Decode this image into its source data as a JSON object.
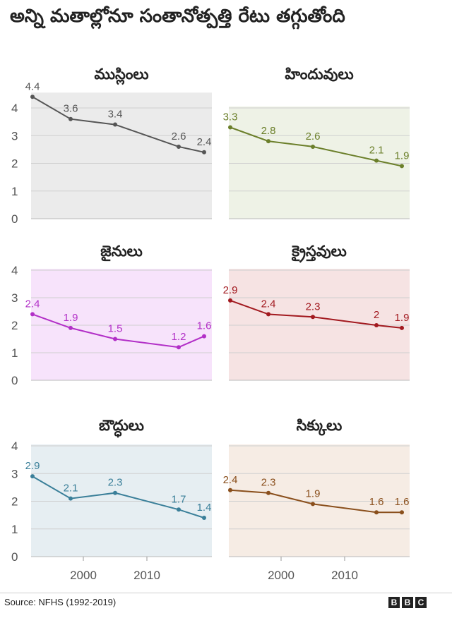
{
  "title": "అన్ని మతాల్లోనూ సంతానోత్పత్తి రేటు తగ్గుతోంది",
  "source": "Source: NFHS (1992-2019)",
  "logo": [
    "B",
    "B",
    "C"
  ],
  "chart_data": {
    "type": "area",
    "grid": true,
    "ylim": [
      0,
      4
    ],
    "yticks": [
      "0",
      "1",
      "2",
      "3",
      "4"
    ],
    "xlim": [
      1992,
      2020
    ],
    "xticks": [
      "2000",
      "2010"
    ],
    "x": [
      1992,
      1998,
      2005,
      2015,
      2019
    ],
    "panels": [
      {
        "name": "ముస్లింలు",
        "color": "#555555",
        "fill": "#ebebeb",
        "values": [
          4.4,
          3.6,
          3.4,
          2.6,
          2.4
        ],
        "labels": [
          "4.4",
          "3.6",
          "3.4",
          "2.6",
          "2.4"
        ]
      },
      {
        "name": "హిందువులు",
        "color": "#6b7f2a",
        "fill": "#eef2e6",
        "values": [
          3.3,
          2.8,
          2.6,
          2.1,
          1.9
        ],
        "labels": [
          "3.3",
          "2.8",
          "2.6",
          "2.1",
          "1.9"
        ]
      },
      {
        "name": "జైనులు",
        "color": "#b22fc7",
        "fill": "#f7e3fb",
        "values": [
          2.4,
          1.9,
          1.5,
          1.2,
          1.6
        ],
        "labels": [
          "2.4",
          "1.9",
          "1.5",
          "1.2",
          "1.6"
        ]
      },
      {
        "name": "క్రైస్తవులు",
        "color": "#a2191f",
        "fill": "#f6e3e3",
        "values": [
          2.9,
          2.4,
          2.3,
          2.0,
          1.9
        ],
        "labels": [
          "2.9",
          "2.4",
          "2.3",
          "2",
          "1.9"
        ]
      },
      {
        "name": "బౌద్ధులు",
        "color": "#3a7f99",
        "fill": "#e6eef2",
        "values": [
          2.9,
          2.1,
          2.3,
          1.7,
          1.4
        ],
        "labels": [
          "2.9",
          "2.1",
          "2.3",
          "1.7",
          "1.4"
        ]
      },
      {
        "name": "సిక్కులు",
        "color": "#8a4f1c",
        "fill": "#f6ece4",
        "values": [
          2.4,
          2.3,
          1.9,
          1.6,
          1.6
        ],
        "labels": [
          "2.4",
          "2.3",
          "1.9",
          "1.6",
          "1.6"
        ]
      }
    ]
  }
}
